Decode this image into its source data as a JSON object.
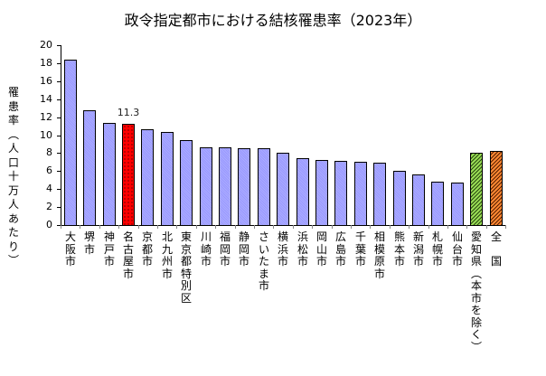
{
  "chart_data": {
    "type": "bar",
    "title": "政令指定都市における結核罹患率（2023年）",
    "xlabel": "",
    "ylabel": "罹患率（人口十万人あたり）",
    "ylim": [
      0,
      20
    ],
    "yticks": [
      0,
      2,
      4,
      6,
      8,
      10,
      12,
      14,
      16,
      18,
      20
    ],
    "grid": false,
    "legend": null,
    "categories": [
      "大阪市",
      "堺市",
      "神戸市",
      "名古屋市",
      "京都市",
      "北九州市",
      "東京都特別区",
      "川崎市",
      "福岡市",
      "静岡市",
      "さいたま市",
      "横浜市",
      "浜松市",
      "岡山市",
      "広島市",
      "千葉市",
      "相模原市",
      "熊本市",
      "新潟市",
      "札幌市",
      "仙台市",
      "愛知県（本市を除く）",
      "全　国"
    ],
    "values": [
      18.4,
      12.8,
      11.4,
      11.3,
      10.7,
      10.4,
      9.4,
      8.6,
      8.6,
      8.5,
      8.5,
      8.0,
      7.4,
      7.2,
      7.1,
      7.0,
      6.9,
      6.0,
      5.6,
      4.8,
      4.7,
      8.0,
      8.2
    ],
    "bar_styles": [
      "city",
      "city",
      "city",
      "highlight",
      "city",
      "city",
      "city",
      "city",
      "city",
      "city",
      "city",
      "city",
      "city",
      "city",
      "city",
      "city",
      "city",
      "city",
      "city",
      "city",
      "city",
      "pref",
      "nation"
    ],
    "annotations": [
      {
        "category": "名古屋市",
        "text": "11.3"
      }
    ],
    "colors": {
      "city": "#9999ff",
      "highlight": "#ff0000",
      "pref": "#99cc44",
      "nation": "#ff7722"
    }
  },
  "title": "政令指定都市における結核罹患率（2023年）",
  "ylabel": "罹患率（人口十万人あたり）",
  "highlight_label": "11.3"
}
